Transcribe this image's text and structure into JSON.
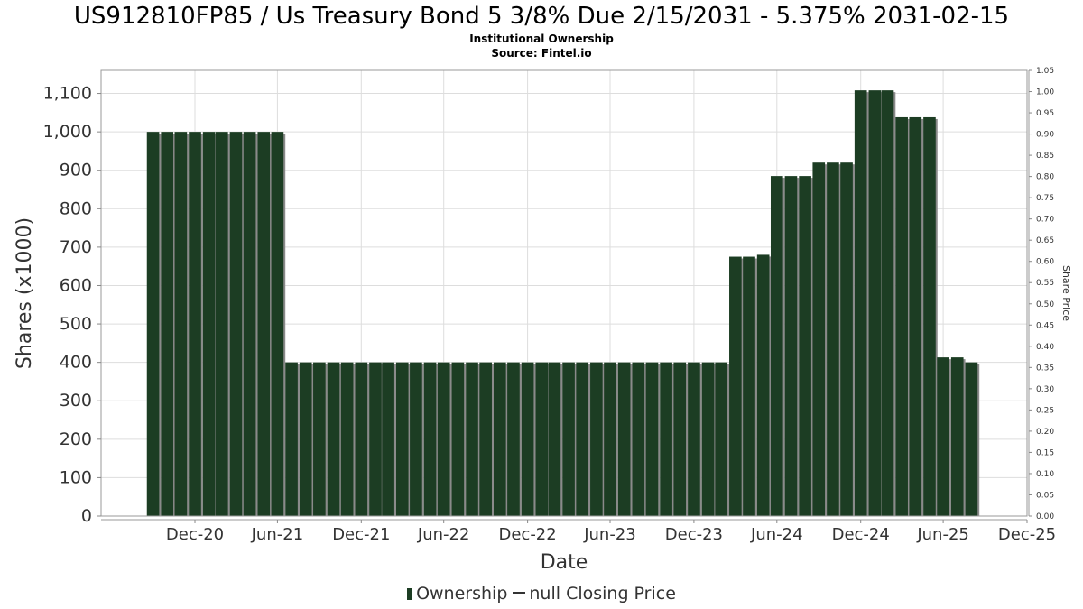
{
  "chart_data": {
    "type": "bar",
    "title": "US912810FP85 / Us Treasury Bond 5 3/8% Due 2/15/2031 - 5.375% 2031-02-15",
    "subtitle": [
      "Institutional Ownership",
      "Source: Fintel.io"
    ],
    "xlabel": "Date",
    "ylabel": "Shares (x1000)",
    "y2label": "Share Price",
    "ylim": [
      0,
      1160
    ],
    "yticks": [
      0,
      100,
      200,
      300,
      400,
      500,
      600,
      700,
      800,
      900,
      1000,
      1100
    ],
    "ytick_labels": [
      "0",
      "100",
      "200",
      "300",
      "400",
      "500",
      "600",
      "700",
      "800",
      "900",
      "1,000",
      "1,100"
    ],
    "y2lim": [
      0,
      1.05
    ],
    "y2tick_labels": [
      "0.00",
      "0.05",
      "0.10",
      "0.15",
      "0.20",
      "0.25",
      "0.30",
      "0.35",
      "0.40",
      "0.45",
      "0.50",
      "0.55",
      "0.60",
      "0.65",
      "0.70",
      "0.75",
      "0.80",
      "0.85",
      "0.90",
      "0.95",
      "1.00",
      "1.05"
    ],
    "xlim": [
      "2020-06-08",
      "2025-12-31"
    ],
    "xtick_dates": [
      "2020-12-31",
      "2021-06-30",
      "2021-12-31",
      "2022-06-30",
      "2022-12-31",
      "2023-06-30",
      "2023-12-31",
      "2024-06-30",
      "2024-12-31",
      "2025-06-30",
      "2025-12-31"
    ],
    "xtick_labels": [
      "Dec-20",
      "Jun-21",
      "Dec-21",
      "Jun-22",
      "Dec-22",
      "Jun-23",
      "Dec-23",
      "Jun-24",
      "Dec-24",
      "Jun-25",
      "Dec-25"
    ],
    "grid": true,
    "legend_position": "bottom-center",
    "series": [
      {
        "name": "Ownership",
        "color": "#1c3d23",
        "points": [
          [
            "2020-09-30",
            1000
          ],
          [
            "2020-10-31",
            1000
          ],
          [
            "2020-11-30",
            1000
          ],
          [
            "2020-12-31",
            1000
          ],
          [
            "2021-01-31",
            1000
          ],
          [
            "2021-02-28",
            1000
          ],
          [
            "2021-03-31",
            1000
          ],
          [
            "2021-04-30",
            1000
          ],
          [
            "2021-05-31",
            1000
          ],
          [
            "2021-06-30",
            1000
          ],
          [
            "2021-07-31",
            400
          ],
          [
            "2021-08-31",
            400
          ],
          [
            "2021-09-30",
            400
          ],
          [
            "2021-10-31",
            400
          ],
          [
            "2021-11-30",
            400
          ],
          [
            "2021-12-31",
            400
          ],
          [
            "2022-01-31",
            400
          ],
          [
            "2022-02-28",
            400
          ],
          [
            "2022-03-31",
            400
          ],
          [
            "2022-04-30",
            400
          ],
          [
            "2022-05-31",
            400
          ],
          [
            "2022-06-30",
            400
          ],
          [
            "2022-07-31",
            400
          ],
          [
            "2022-08-31",
            400
          ],
          [
            "2022-09-30",
            400
          ],
          [
            "2022-10-31",
            400
          ],
          [
            "2022-11-30",
            400
          ],
          [
            "2022-12-31",
            400
          ],
          [
            "2023-01-31",
            400
          ],
          [
            "2023-02-28",
            400
          ],
          [
            "2023-03-31",
            400
          ],
          [
            "2023-04-30",
            400
          ],
          [
            "2023-05-31",
            400
          ],
          [
            "2023-06-30",
            400
          ],
          [
            "2023-07-31",
            400
          ],
          [
            "2023-08-31",
            400
          ],
          [
            "2023-09-30",
            400
          ],
          [
            "2023-10-31",
            400
          ],
          [
            "2023-11-30",
            400
          ],
          [
            "2023-12-31",
            400
          ],
          [
            "2024-01-31",
            400
          ],
          [
            "2024-02-29",
            400
          ],
          [
            "2024-03-31",
            675
          ],
          [
            "2024-04-30",
            675
          ],
          [
            "2024-05-31",
            680
          ],
          [
            "2024-06-30",
            885
          ],
          [
            "2024-07-31",
            885
          ],
          [
            "2024-08-31",
            885
          ],
          [
            "2024-09-30",
            920
          ],
          [
            "2024-10-31",
            920
          ],
          [
            "2024-11-30",
            920
          ],
          [
            "2024-12-31",
            1108
          ],
          [
            "2025-01-31",
            1108
          ],
          [
            "2025-02-28",
            1108
          ],
          [
            "2025-03-31",
            1038
          ],
          [
            "2025-04-30",
            1038
          ],
          [
            "2025-05-31",
            1038
          ],
          [
            "2025-06-30",
            413
          ],
          [
            "2025-07-31",
            413
          ],
          [
            "2025-08-31",
            400
          ]
        ]
      },
      {
        "name": "null Closing Price",
        "color": "#333333",
        "points": []
      }
    ]
  },
  "legend": {
    "ownership_label": "Ownership",
    "price_label": "null Closing Price"
  }
}
